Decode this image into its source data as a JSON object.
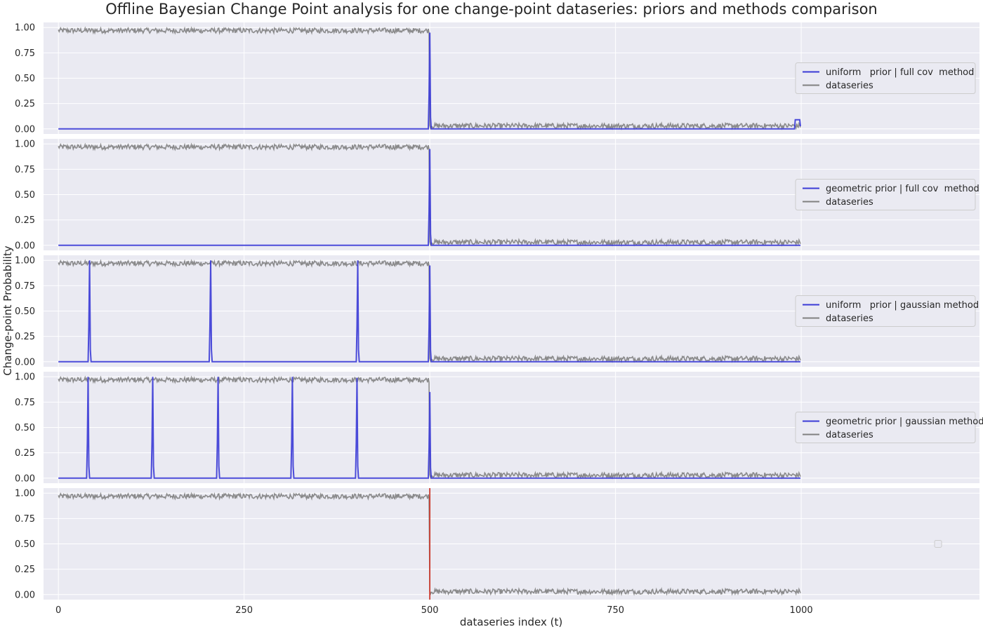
{
  "chart_data": {
    "type": "line",
    "title": "Offline Bayesian Change Point analysis for one change-point dataseries: priors and methods comparison",
    "xlabel": "dataseries index (t)",
    "ylabel": "Change-point Probability",
    "xlim": [
      -20,
      1240
    ],
    "ylim": [
      -0.05,
      1.05
    ],
    "xticks": [
      0,
      250,
      500,
      750,
      1000
    ],
    "xtick_labels": [
      "0",
      "250",
      "500",
      "750",
      "1000"
    ],
    "yticks": [
      0.0,
      0.25,
      0.5,
      0.75,
      1.0
    ],
    "ytick_labels": [
      "0.00",
      "0.25",
      "0.50",
      "0.75",
      "1.00"
    ],
    "grid": true,
    "dataseries": {
      "name": "dataseries",
      "color": "#808080",
      "length": 1000,
      "level_before": 0.97,
      "level_after": 0.03,
      "change_index": 500,
      "noise_amplitude": 0.025
    },
    "panels": [
      {
        "legend_label": "uniform   prior | full cov  method",
        "legend_placement": "center-right",
        "series_color": "#3a3ad6",
        "spikes": [
          {
            "x": 500,
            "y": 0.95
          }
        ],
        "tail_bump": {
          "x": 995,
          "y": 0.09
        }
      },
      {
        "legend_label": "geometric prior | full cov  method",
        "legend_placement": "center-right",
        "series_color": "#3a3ad6",
        "spikes": [
          {
            "x": 500,
            "y": 0.95
          }
        ]
      },
      {
        "legend_label": "uniform   prior | gaussian method",
        "legend_placement": "center-right",
        "series_color": "#3a3ad6",
        "spikes": [
          {
            "x": 42,
            "y": 1.0
          },
          {
            "x": 205,
            "y": 1.0
          },
          {
            "x": 403,
            "y": 1.0
          },
          {
            "x": 500,
            "y": 0.95
          }
        ]
      },
      {
        "legend_label": "geometric prior | gaussian method",
        "legend_placement": "center-right",
        "series_color": "#3a3ad6",
        "spikes": [
          {
            "x": 40,
            "y": 1.0
          },
          {
            "x": 127,
            "y": 1.0
          },
          {
            "x": 215,
            "y": 1.0
          },
          {
            "x": 315,
            "y": 1.0
          },
          {
            "x": 402,
            "y": 0.99
          },
          {
            "x": 500,
            "y": 0.85
          }
        ]
      },
      {
        "legend_label": "",
        "legend_placement": "center-right",
        "change_line": {
          "x": 500,
          "color": "#cc3b2f"
        }
      }
    ],
    "colors": {
      "axes_background": "#eaeaf2",
      "grid": "#ffffff"
    }
  }
}
